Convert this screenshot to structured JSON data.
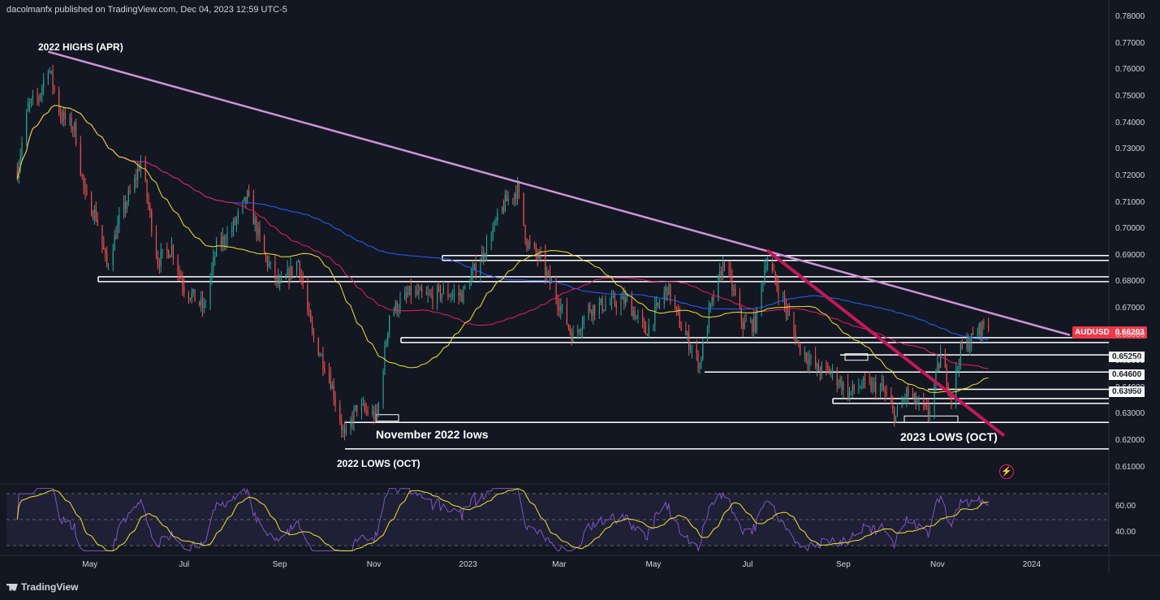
{
  "header": {
    "text": "dacolmanfx published on TradingView.com, Dec 04, 2023 12:59 UTC-5"
  },
  "footer": {
    "logo_text": "TradingView"
  },
  "annotations": {
    "highs_2022": "2022 HIGHS (APR)",
    "nov_lows": "November 2022 lows",
    "lows_2022": "2022 LOWS (OCT)",
    "lows_2023": "2023 LOWS (OCT)"
  },
  "symbol_badge": {
    "symbol": "AUDUSD",
    "price": "0.66203",
    "color": "#f23645"
  },
  "level_labels": [
    "0.65250",
    "0.64600",
    "0.63950"
  ],
  "colors": {
    "background": "#131722",
    "up_candle": "#26a69a",
    "down_candle": "#ef5350",
    "sma50": "#f2e52a",
    "sma100": "#e91e63",
    "sma200": "#2962ff",
    "trendline_down": "#ce93d8",
    "trendline_breakout": "#c2185b",
    "rsi": "#7e57c2",
    "rsi_signal": "#f2e52a"
  },
  "chart_data": {
    "type": "candlestick",
    "symbol": "AUDUSD",
    "timeframe": "1D",
    "ylim": [
      0.605,
      0.781
    ],
    "y_ticks": [
      "0.78000",
      "0.77000",
      "0.76000",
      "0.75000",
      "0.74000",
      "0.73000",
      "0.72000",
      "0.71000",
      "0.70000",
      "0.69000",
      "0.68000",
      "0.67000",
      "0.66000",
      "0.65000",
      "0.64000",
      "0.63000",
      "0.62000",
      "0.61000"
    ],
    "x_ticks": [
      "May",
      "Jul",
      "Sep",
      "Nov",
      "2023",
      "Mar",
      "May",
      "Jul",
      "Sep",
      "Nov",
      "2024"
    ],
    "close_path": [
      [
        "2022-03-15",
        0.722
      ],
      [
        "2022-03-22",
        0.746
      ],
      [
        "2022-03-29",
        0.75
      ],
      [
        "2022-04-04",
        0.762
      ],
      [
        "2022-04-12",
        0.743
      ],
      [
        "2022-04-21",
        0.738
      ],
      [
        "2022-04-28",
        0.712
      ],
      [
        "2022-05-05",
        0.705
      ],
      [
        "2022-05-12",
        0.686
      ],
      [
        "2022-05-20",
        0.703
      ],
      [
        "2022-05-30",
        0.718
      ],
      [
        "2022-06-03",
        0.726
      ],
      [
        "2022-06-14",
        0.688
      ],
      [
        "2022-06-23",
        0.693
      ],
      [
        "2022-07-01",
        0.678
      ],
      [
        "2022-07-14",
        0.67
      ],
      [
        "2022-07-22",
        0.693
      ],
      [
        "2022-08-01",
        0.7
      ],
      [
        "2022-08-11",
        0.712
      ],
      [
        "2022-08-22",
        0.69
      ],
      [
        "2022-09-01",
        0.678
      ],
      [
        "2022-09-13",
        0.688
      ],
      [
        "2022-09-22",
        0.66
      ],
      [
        "2022-10-03",
        0.645
      ],
      [
        "2022-10-13",
        0.621
      ],
      [
        "2022-10-21",
        0.633
      ],
      [
        "2022-11-03",
        0.629
      ],
      [
        "2022-11-11",
        0.668
      ],
      [
        "2022-11-25",
        0.676
      ],
      [
        "2022-12-05",
        0.674
      ],
      [
        "2022-12-15",
        0.676
      ],
      [
        "2022-12-28",
        0.675
      ],
      [
        "2023-01-10",
        0.69
      ],
      [
        "2023-01-25",
        0.71
      ],
      [
        "2023-02-02",
        0.715
      ],
      [
        "2023-02-08",
        0.695
      ],
      [
        "2023-02-17",
        0.688
      ],
      [
        "2023-03-01",
        0.672
      ],
      [
        "2023-03-10",
        0.659
      ],
      [
        "2023-03-20",
        0.67
      ],
      [
        "2023-04-04",
        0.672
      ],
      [
        "2023-04-14",
        0.673
      ],
      [
        "2023-04-26",
        0.661
      ],
      [
        "2023-05-10",
        0.678
      ],
      [
        "2023-05-19",
        0.663
      ],
      [
        "2023-05-31",
        0.649
      ],
      [
        "2023-06-06",
        0.668
      ],
      [
        "2023-06-16",
        0.688
      ],
      [
        "2023-06-28",
        0.664
      ],
      [
        "2023-07-06",
        0.664
      ],
      [
        "2023-07-13",
        0.689
      ],
      [
        "2023-07-24",
        0.673
      ],
      [
        "2023-08-03",
        0.656
      ],
      [
        "2023-08-15",
        0.647
      ],
      [
        "2023-08-24",
        0.646
      ],
      [
        "2023-09-05",
        0.638
      ],
      [
        "2023-09-12",
        0.641
      ],
      [
        "2023-09-26",
        0.64
      ],
      [
        "2023-10-05",
        0.629
      ],
      [
        "2023-10-12",
        0.638
      ],
      [
        "2023-10-26",
        0.63
      ],
      [
        "2023-11-03",
        0.652
      ],
      [
        "2023-11-10",
        0.637
      ],
      [
        "2023-11-16",
        0.654
      ],
      [
        "2023-11-24",
        0.659
      ],
      [
        "2023-12-01",
        0.664
      ],
      [
        "2023-12-04",
        0.662
      ]
    ],
    "moving_averages": [
      {
        "name": "SMA 50",
        "note": "yellow line"
      },
      {
        "name": "SMA 100",
        "note": "red line"
      },
      {
        "name": "SMA 200",
        "note": "blue line"
      }
    ],
    "horizontal_levels": [
      0.69,
      0.682,
      0.659,
      0.6525,
      0.646,
      0.6395,
      0.636,
      0.627,
      0.617
    ],
    "rsi_panel": {
      "ylim": [
        25,
        75
      ],
      "y_ticks": [
        "60.00",
        "40.00"
      ],
      "band": [
        30,
        70
      ]
    }
  }
}
